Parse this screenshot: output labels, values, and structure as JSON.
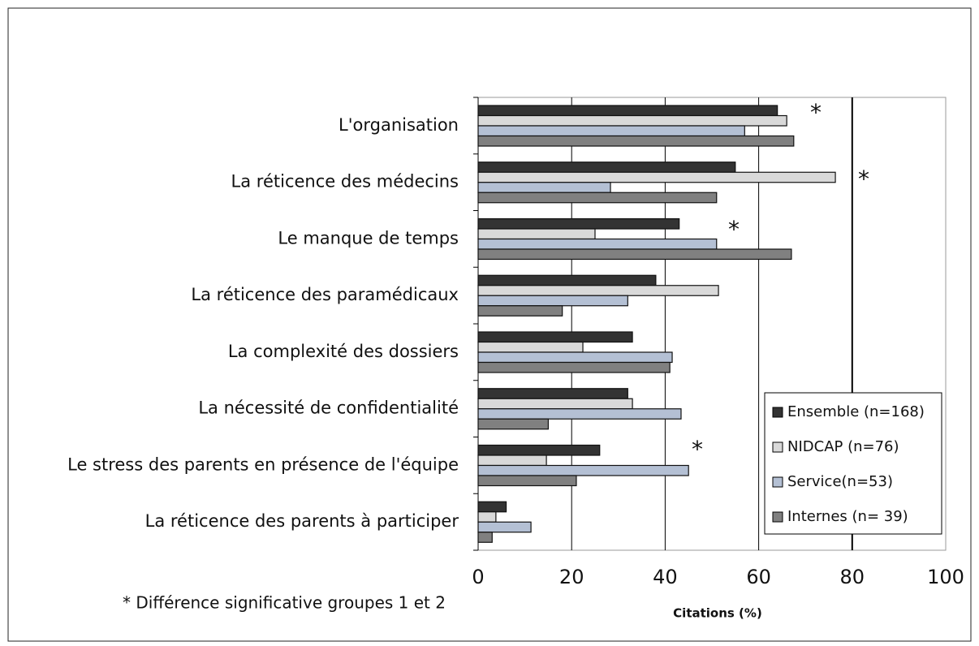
{
  "chart_data": {
    "type": "hbar",
    "categories": [
      "L'organisation",
      "La réticence des médecins",
      "Le manque de temps",
      "La réticence des paramédicaux",
      "La complexité des dossiers",
      "La nécessité de confidentialité",
      "Le stress des parents en présence de l'équipe",
      "La réticence des parents à participer"
    ],
    "series": [
      {
        "name": "Ensemble (n=168)",
        "color": "#333333",
        "values": [
          64,
          55,
          43,
          38,
          33,
          32,
          26,
          6
        ]
      },
      {
        "name": "NIDCAP (n=76)",
        "color": "#d9d9d9",
        "values": [
          66,
          76.4,
          25,
          51.4,
          22.4,
          33,
          14.6,
          3.8
        ]
      },
      {
        "name": "Service(n=53)",
        "color": "#b4c0d4",
        "values": [
          57,
          28.3,
          51,
          32,
          41.5,
          43.4,
          45,
          11.3
        ]
      },
      {
        "name": "Internes (n= 39)",
        "color": "#808080",
        "values": [
          67.5,
          51,
          67,
          18,
          41,
          15,
          21,
          3
        ]
      }
    ],
    "xlim": [
      0,
      100
    ],
    "xticks": [
      0,
      20,
      40,
      60,
      80,
      100
    ],
    "grid": true,
    "x_label": "Citations (%)",
    "annotations": [
      "*",
      "*",
      "*",
      "*"
    ],
    "footnote": "* Différence significative groupes 1 et 2",
    "legend": "lower right"
  }
}
